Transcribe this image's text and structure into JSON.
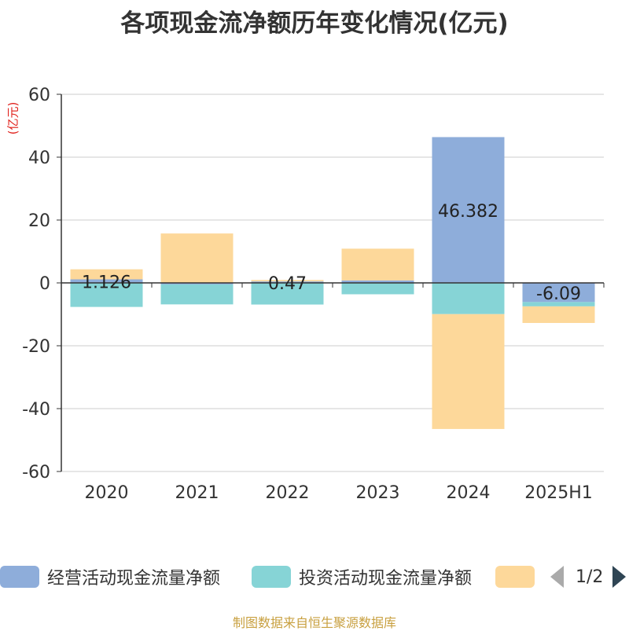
{
  "title": "各项现金流净额历年变化情况(亿元)",
  "source": "制图数据来自恒生聚源数据库",
  "chart_data": {
    "type": "bar",
    "stacked": true,
    "unit_label": "(亿元)",
    "categories": [
      "2020",
      "2021",
      "2022",
      "2023",
      "2024",
      "2025H1"
    ],
    "ylim": [
      -60,
      60
    ],
    "yticks": [
      60,
      40,
      20,
      0,
      -20,
      -40,
      -60
    ],
    "grid": true,
    "series": [
      {
        "name": "经营活动现金流量净额",
        "color": "#8eadda",
        "values": [
          1.126,
          -0.48,
          0.47,
          0.79,
          46.382,
          -6.09
        ],
        "labels": [
          "1.126",
          "",
          "0.47",
          "",
          "46.382",
          "-6.09"
        ]
      },
      {
        "name": "投资活动现金流量净额",
        "color": "#86d4d6",
        "values": [
          -7.65,
          -6.36,
          -6.89,
          -3.62,
          -9.94,
          -1.38
        ],
        "labels": [
          "",
          "",
          "",
          "",
          "",
          ""
        ]
      },
      {
        "name": "",
        "color": "#fdd89a",
        "values": [
          3.2,
          15.72,
          0.45,
          10.1,
          -36.54,
          -5.28
        ],
        "labels": [
          "",
          "",
          "",
          "",
          "",
          ""
        ]
      }
    ]
  },
  "legend": {
    "items": [
      {
        "label": "经营活动现金流量净额",
        "color": "#8eadda"
      },
      {
        "label": "投资活动现金流量净额",
        "color": "#86d4d6"
      },
      {
        "label": "",
        "color": "#fdd89a"
      }
    ],
    "page_text": "1/2"
  }
}
